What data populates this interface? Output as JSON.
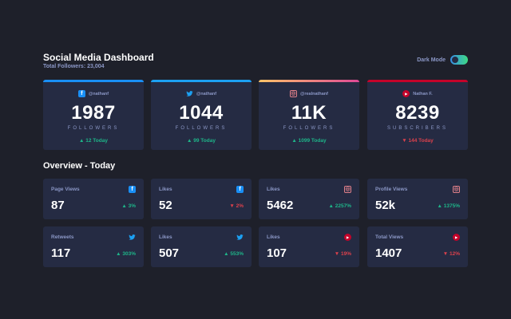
{
  "header": {
    "title": "Social Media Dashboard",
    "subtitle": "Total Followers: 23,004",
    "dark_mode_label": "Dark Mode",
    "dark_mode_on": true
  },
  "colors": {
    "background": "#1e202a",
    "card": "#252b43",
    "muted": "#8b97c6",
    "up": "#1eb589",
    "down": "#dc414c",
    "facebook": "#198ff5",
    "twitter": "#1ca0f2",
    "youtube": "#c4032a"
  },
  "cards": [
    {
      "platform": "facebook",
      "icon": "facebook-icon",
      "handle": "@nathanf",
      "count": "1987",
      "label": "FOLLOWERS",
      "today": "▲ 12 Today",
      "trend": "up"
    },
    {
      "platform": "twitter",
      "icon": "twitter-icon",
      "handle": "@nathanf",
      "count": "1044",
      "label": "FOLLOWERS",
      "today": "▲ 99 Today",
      "trend": "up"
    },
    {
      "platform": "instagram",
      "icon": "instagram-icon",
      "handle": "@realnathanf",
      "count": "11K",
      "label": "FOLLOWERS",
      "today": "▲ 1099 Today",
      "trend": "up"
    },
    {
      "platform": "youtube",
      "icon": "youtube-icon",
      "handle": "Nathan F.",
      "count": "8239",
      "label": "SUBSCRIBERS",
      "today": "▼ 144 Today",
      "trend": "down"
    }
  ],
  "overview": {
    "title": "Overview - Today",
    "items": [
      {
        "label": "Page Views",
        "platform": "facebook",
        "value": "87",
        "change": "▲ 3%",
        "trend": "up"
      },
      {
        "label": "Likes",
        "platform": "facebook",
        "value": "52",
        "change": "▼ 2%",
        "trend": "down"
      },
      {
        "label": "Likes",
        "platform": "instagram",
        "value": "5462",
        "change": "▲ 2257%",
        "trend": "up"
      },
      {
        "label": "Profile Views",
        "platform": "instagram",
        "value": "52k",
        "change": "▲ 1375%",
        "trend": "up"
      },
      {
        "label": "Retweets",
        "platform": "twitter",
        "value": "117",
        "change": "▲ 303%",
        "trend": "up"
      },
      {
        "label": "Likes",
        "platform": "twitter",
        "value": "507",
        "change": "▲ 553%",
        "trend": "up"
      },
      {
        "label": "Likes",
        "platform": "youtube",
        "value": "107",
        "change": "▼ 19%",
        "trend": "down"
      },
      {
        "label": "Total Views",
        "platform": "youtube",
        "value": "1407",
        "change": "▼ 12%",
        "trend": "down"
      }
    ]
  }
}
